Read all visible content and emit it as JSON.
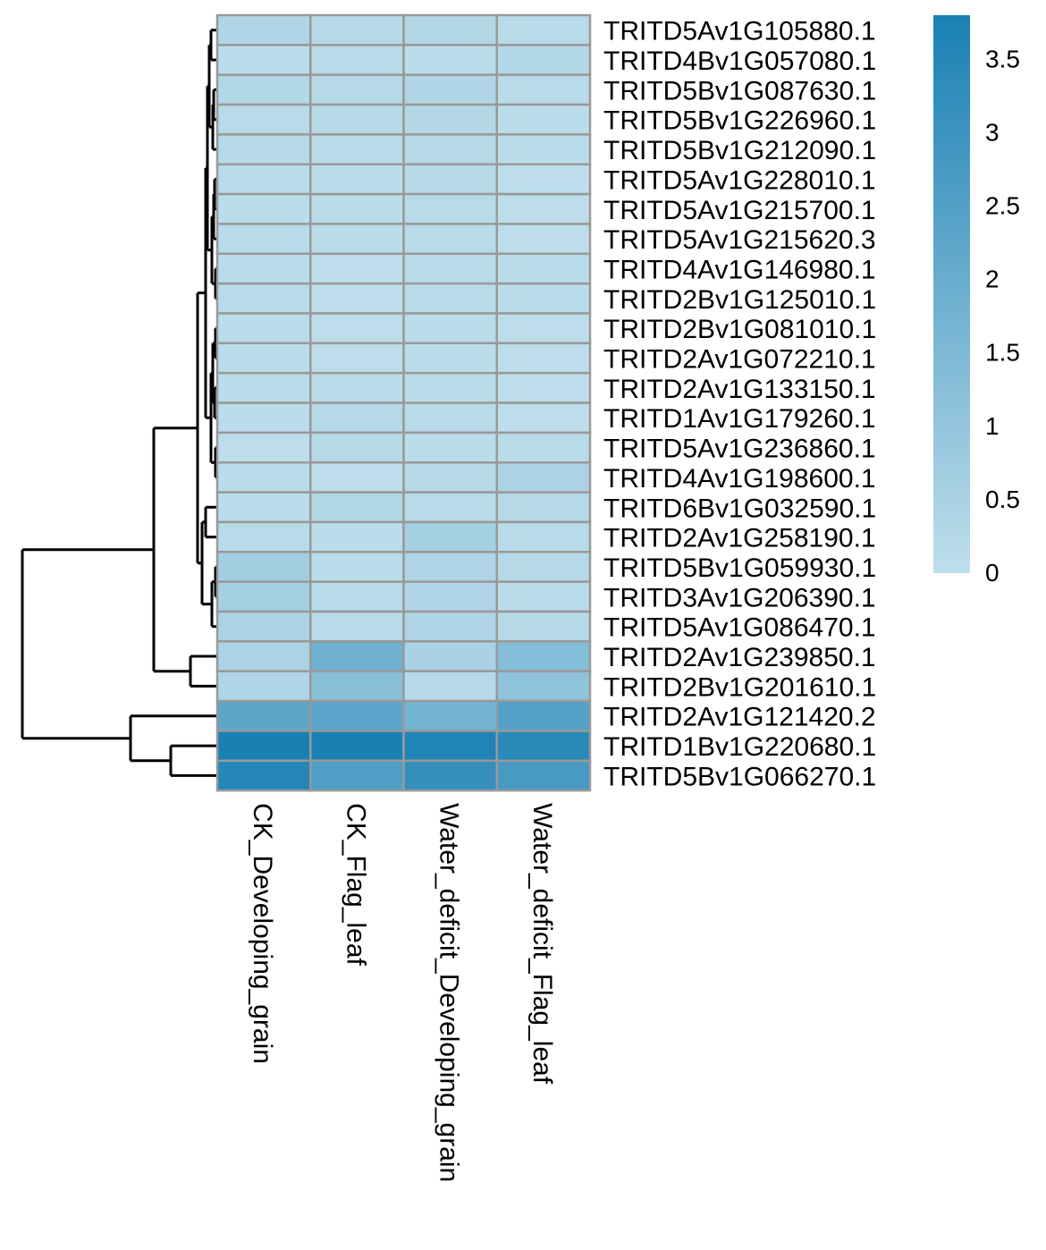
{
  "chart_data": {
    "type": "heatmap",
    "columns": [
      "CK_Developing_grain",
      "CK_Flag_leaf",
      "Water_deficit_Developing_grain",
      "Water_deficit_Flag_leaf"
    ],
    "rows": [
      "TRITD5Av1G105880.1",
      "TRITD4Bv1G057080.1",
      "TRITD5Bv1G087630.1",
      "TRITD5Bv1G226960.1",
      "TRITD5Bv1G212090.1",
      "TRITD5Av1G228010.1",
      "TRITD5Av1G215700.1",
      "TRITD5Av1G215620.3",
      "TRITD4Av1G146980.1",
      "TRITD2Bv1G125010.1",
      "TRITD2Bv1G081010.1",
      "TRITD2Av1G072210.1",
      "TRITD2Av1G133150.1",
      "TRITD1Av1G179260.1",
      "TRITD5Av1G236860.1",
      "TRITD4Av1G198600.1",
      "TRITD6Bv1G032590.1",
      "TRITD2Av1G258190.1",
      "TRITD5Bv1G059930.1",
      "TRITD3Av1G206390.1",
      "TRITD5Av1G086470.1",
      "TRITD2Av1G239850.1",
      "TRITD2Bv1G201610.1",
      "TRITD2Av1G121420.2",
      "TRITD1Bv1G220680.1",
      "TRITD5Bv1G066270.1"
    ],
    "values": [
      [
        0.35,
        0.2,
        0.3,
        0.15
      ],
      [
        0.1,
        0.15,
        0.1,
        0.3
      ],
      [
        0.3,
        0.2,
        0.35,
        0.15
      ],
      [
        0.15,
        0.2,
        0.25,
        0.1
      ],
      [
        0.2,
        0.15,
        0.2,
        0.1
      ],
      [
        0.15,
        0.1,
        0.2,
        0.05
      ],
      [
        0.1,
        0.1,
        0.15,
        0.05
      ],
      [
        0.15,
        0.1,
        0.15,
        0.05
      ],
      [
        0.1,
        0.05,
        0.15,
        0.1
      ],
      [
        0.15,
        0.05,
        0.15,
        0.1
      ],
      [
        0.1,
        0.05,
        0.1,
        0.05
      ],
      [
        0.1,
        0.05,
        0.1,
        0.05
      ],
      [
        0.1,
        0.1,
        0.1,
        0.05
      ],
      [
        0.1,
        0.2,
        0.15,
        0.05
      ],
      [
        0.05,
        0.2,
        0.1,
        0.15
      ],
      [
        0.1,
        0.05,
        0.2,
        0.45
      ],
      [
        0.1,
        0.3,
        0.15,
        0.2
      ],
      [
        0.15,
        0.1,
        0.6,
        0.15
      ],
      [
        0.65,
        0.1,
        0.4,
        0.2
      ],
      [
        0.6,
        0.15,
        0.35,
        0.1
      ],
      [
        0.45,
        0.15,
        0.4,
        0.2
      ],
      [
        0.45,
        1.85,
        0.5,
        1.35
      ],
      [
        0.4,
        1.3,
        0.2,
        1.1
      ],
      [
        2.25,
        2.3,
        1.75,
        2.45
      ],
      [
        3.8,
        3.85,
        3.65,
        3.45
      ],
      [
        3.55,
        2.6,
        3.2,
        2.75
      ]
    ],
    "legend": {
      "min": 0,
      "max": 3.8,
      "ticks": [
        "0",
        "0.5",
        "1",
        "1.5",
        "2",
        "2.5",
        "3",
        "3.5"
      ],
      "color_low": "#bfdeeb",
      "color_high": "#1a80b4"
    },
    "cell_border_color": "#999999",
    "row_dendrogram": {
      "merges": [
        [
          0,
          1
        ],
        [
          2,
          3
        ],
        [
          4,
          5
        ],
        [
          6,
          7
        ],
        [
          8,
          9
        ],
        [
          10,
          11
        ],
        [
          12,
          13
        ],
        [
          14,
          15
        ],
        [
          16,
          17
        ],
        [
          18,
          19
        ],
        [
          20,
          21
        ],
        [
          22,
          23
        ],
        [
          24,
          25
        ]
      ]
    },
    "title": "",
    "xlabel": "",
    "ylabel": ""
  }
}
